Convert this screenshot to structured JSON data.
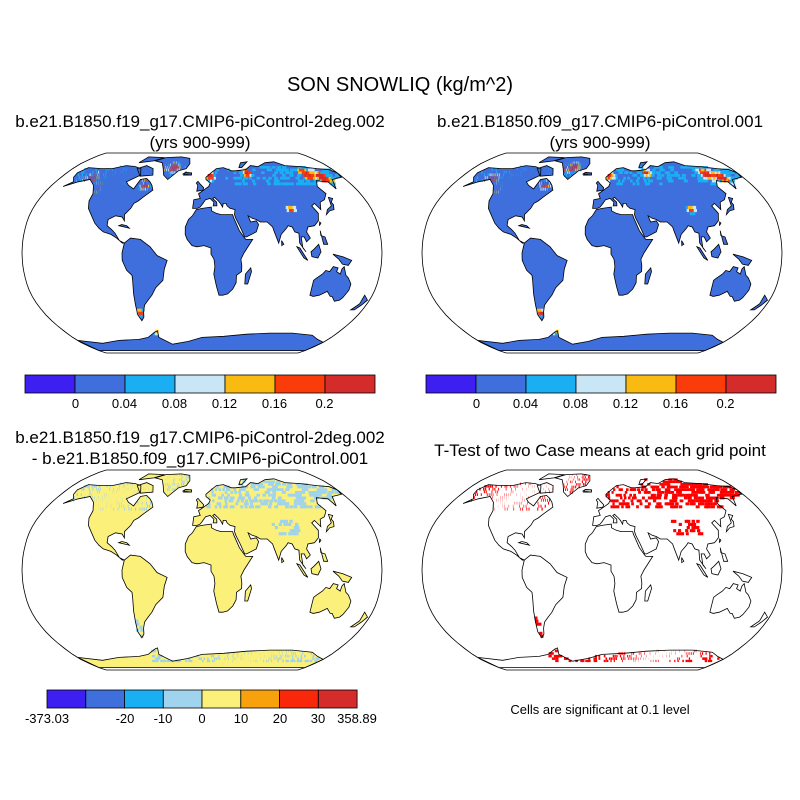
{
  "main_title": "SON SNOWLIQ (kg/m^2)",
  "panels": {
    "case1": {
      "title_line1": "b.e21.B1850.f19_g17.CMIP6-piControl-2deg.002",
      "title_line2": "(yrs 900-999)"
    },
    "case2": {
      "title_line1": "b.e21.B1850.f09_g17.CMIP6-piControl.001",
      "title_line2": "(yrs 900-999)"
    },
    "diff": {
      "title_line1": "b.e21.B1850.f19_g17.CMIP6-piControl-2deg.002",
      "title_line2": "- b.e21.B1850.f09_g17.CMIP6-piControl.001"
    },
    "ttest": {
      "title_line1": "T-Test of two Case means at each grid point"
    }
  },
  "colorbars": {
    "case": {
      "colors": [
        "#3d1ff2",
        "#3e6fdc",
        "#1aaef2",
        "#c8e6f5",
        "#f9bb12",
        "#fa3c0a",
        "#d42b2b"
      ],
      "labels": [
        "0",
        "0.04",
        "0.08",
        "0.12",
        "0.16",
        "0.2"
      ]
    },
    "diff": {
      "colors": [
        "#3d1ff2",
        "#3e6fdc",
        "#1aaef2",
        "#9fd3ee",
        "#faf07a",
        "#f7a10c",
        "#fa280a",
        "#d42b2b"
      ],
      "labels": [
        "-373.03",
        "-20",
        "-10",
        "0",
        "10",
        "20",
        "30",
        "358.89"
      ]
    }
  },
  "map_fill_colors": {
    "case_land": "#3e6fdc",
    "diff_land": "#faf07a",
    "diff_negative": "#9fd3ee",
    "significant": "#ff0000"
  },
  "significance_note": "Cells are significant at 0.1 level"
}
